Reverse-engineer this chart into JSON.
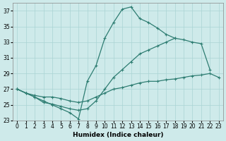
{
  "xlabel": "Humidex (Indice chaleur)",
  "bg_color": "#ceeaea",
  "line_color": "#2e7d72",
  "grid_color": "#aad4d4",
  "x": [
    0,
    1,
    2,
    3,
    4,
    5,
    6,
    7,
    8,
    9,
    10,
    11,
    12,
    13,
    14,
    15,
    16,
    17,
    18,
    19,
    20,
    21,
    22,
    23
  ],
  "line1": [
    27,
    26.5,
    26,
    25.5,
    25,
    24.5,
    24,
    23.2,
    28,
    30,
    33.5,
    35.5,
    37.2,
    37.5,
    36,
    35.5,
    34.8,
    34.0,
    33.5,
    null,
    null,
    null,
    null,
    null
  ],
  "line2": [
    27,
    26.5,
    26,
    25.3,
    25.1,
    24.8,
    24.5,
    24.3,
    24.5,
    25.5,
    27,
    28.5,
    29.5,
    30.5,
    31.5,
    32,
    32.5,
    33,
    33.5,
    33.3,
    33,
    32.8,
    29.5,
    null
  ],
  "line3": [
    27,
    26.5,
    26.2,
    26,
    26,
    25.8,
    25.5,
    25.3,
    25.5,
    26,
    26.5,
    27,
    27.2,
    27.5,
    27.8,
    28,
    28,
    28.2,
    28.3,
    28.5,
    28.7,
    28.8,
    29,
    28.5
  ],
  "ylim": [
    23,
    38
  ],
  "xlim": [
    -0.5,
    23.5
  ],
  "yticks": [
    23,
    25,
    27,
    29,
    31,
    33,
    35,
    37
  ],
  "xticks": [
    0,
    1,
    2,
    3,
    4,
    5,
    6,
    7,
    8,
    9,
    10,
    11,
    12,
    13,
    14,
    15,
    16,
    17,
    18,
    19,
    20,
    21,
    22,
    23
  ]
}
